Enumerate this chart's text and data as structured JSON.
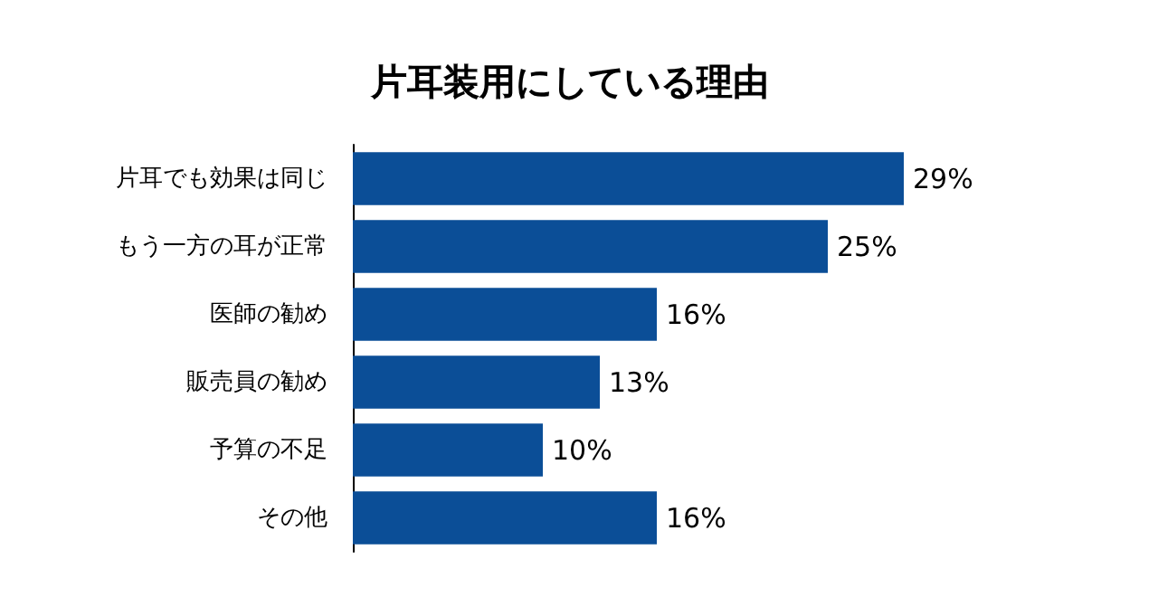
{
  "chart_data": {
    "type": "bar",
    "orientation": "horizontal",
    "title": "片耳装用にしている理由",
    "categories": [
      "片耳でも効果は同じ",
      "もう一方の耳が正常",
      "医師の勧め",
      "販売員の勧め",
      "予算の不足",
      "その他"
    ],
    "values": [
      29,
      25,
      16,
      13,
      10,
      16
    ],
    "value_labels": [
      "29%",
      "25%",
      "16%",
      "13%",
      "10%",
      "16%"
    ],
    "color": "#0b4e97"
  }
}
